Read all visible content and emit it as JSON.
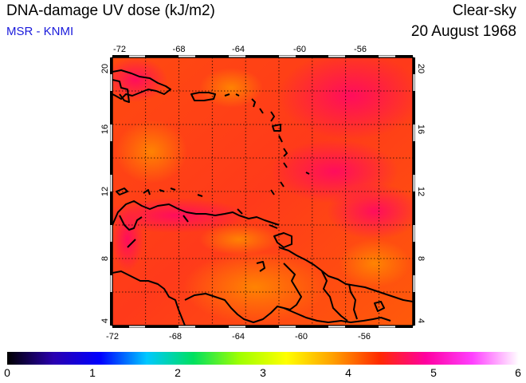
{
  "header": {
    "title": "DNA-damage UV dose (kJ/m2)",
    "subtitle": "MSR - KNMI",
    "sky": "Clear-sky",
    "date": "20 August 1968"
  },
  "map": {
    "lon_ticks": [
      "-72",
      "-68",
      "-64",
      "-60",
      "-56"
    ],
    "lat_ticks": [
      "4",
      "8",
      "12",
      "16",
      "20"
    ],
    "land_color": "#000000",
    "grid": "dotted"
  },
  "colorbar": {
    "labels": [
      "0",
      "1",
      "2",
      "3",
      "4",
      "5",
      "6"
    ],
    "colors": [
      "#000000",
      "#2a00b0",
      "#0000ff",
      "#00c8ff",
      "#00e060",
      "#a0ff00",
      "#ffff00",
      "#ffa000",
      "#ff2a00",
      "#ff00a0",
      "#ff40ff",
      "#ffffff"
    ]
  }
}
